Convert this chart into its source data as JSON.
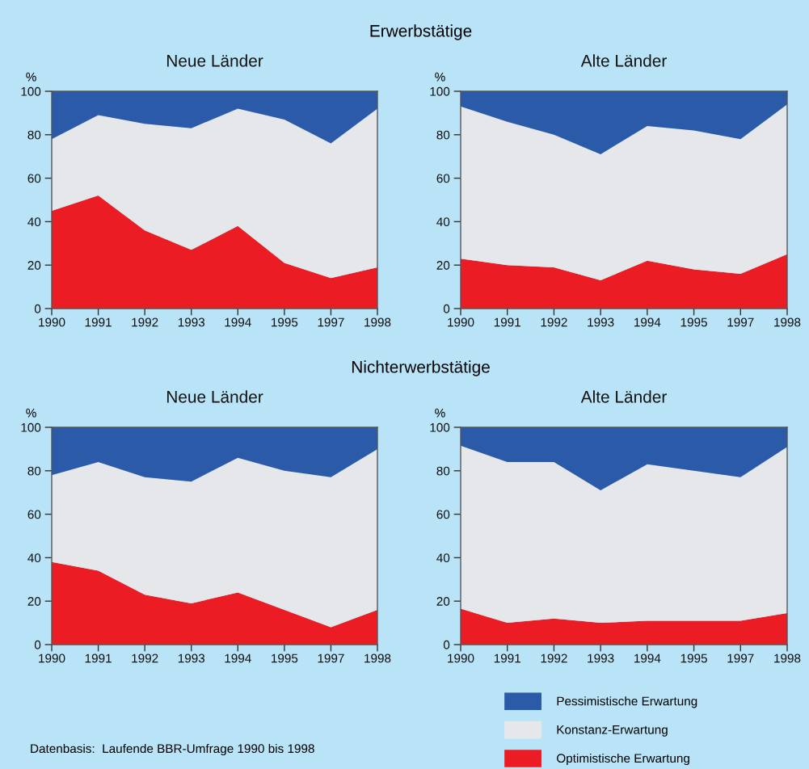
{
  "chart_data": [
    {
      "type": "area",
      "stacked": true,
      "title": "Neue Länder",
      "ylabel": "%",
      "annotations": [
        "Erwerbstätige"
      ],
      "categories": [
        "1990",
        "1991",
        "1992",
        "1993",
        "1994",
        "1995",
        "1997",
        "1998"
      ],
      "ylim": [
        0,
        100
      ],
      "yticks": [
        0,
        20,
        40,
        60,
        80,
        100
      ],
      "grid": false,
      "legend": false,
      "series": [
        {
          "color": "#ec1c24",
          "values": [
            45,
            52,
            36,
            27,
            38,
            21,
            14,
            19
          ]
        },
        {
          "color": "#e5e7ea",
          "values": [
            33,
            37,
            49,
            56,
            54,
            66,
            62,
            73
          ]
        },
        {
          "color": "#2a5aa8",
          "values": [
            22,
            11,
            15,
            17,
            8,
            13,
            24,
            8
          ]
        }
      ]
    },
    {
      "type": "area",
      "stacked": true,
      "title": "Alte Länder",
      "ylabel": "%",
      "categories": [
        "1990",
        "1991",
        "1992",
        "1993",
        "1994",
        "1995",
        "1997",
        "1998"
      ],
      "ylim": [
        0,
        100
      ],
      "yticks": [
        0,
        20,
        40,
        60,
        80,
        100
      ],
      "grid": false,
      "legend": false,
      "series": [
        {
          "color": "#ec1c24",
          "values": [
            23,
            20,
            19,
            13,
            22,
            18,
            16,
            25
          ]
        },
        {
          "color": "#e5e7ea",
          "values": [
            70,
            66,
            61,
            58,
            62,
            64,
            62,
            69
          ]
        },
        {
          "color": "#2a5aa8",
          "values": [
            7,
            14,
            20,
            29,
            16,
            18,
            22,
            6
          ]
        }
      ]
    },
    {
      "type": "area",
      "stacked": true,
      "title": "Neue Länder",
      "ylabel": "%",
      "annotations": [
        "Nichterwerbstätige",
        "Datenbasis:  Laufende BBR-Umfrage 1990 bis 1998"
      ],
      "categories": [
        "1990",
        "1991",
        "1992",
        "1993",
        "1994",
        "1995",
        "1997",
        "1998"
      ],
      "ylim": [
        0,
        100
      ],
      "yticks": [
        0,
        20,
        40,
        60,
        80,
        100
      ],
      "grid": false,
      "legend": false,
      "series": [
        {
          "color": "#ec1c24",
          "values": [
            38,
            34,
            23,
            19,
            24,
            16,
            8,
            16
          ]
        },
        {
          "color": "#e5e7ea",
          "values": [
            40,
            50,
            54,
            56,
            62,
            64,
            69,
            74
          ]
        },
        {
          "color": "#2a5aa8",
          "values": [
            22,
            16,
            23,
            25,
            14,
            20,
            23,
            10
          ]
        }
      ]
    },
    {
      "type": "area",
      "stacked": true,
      "title": "Alte Länder",
      "ylabel": "%",
      "categories": [
        "1990",
        "1991",
        "1992",
        "1993",
        "1994",
        "1995",
        "1997",
        "1998"
      ],
      "ylim": [
        0,
        100
      ],
      "yticks": [
        0,
        20,
        40,
        60,
        80,
        100
      ],
      "grid": false,
      "legend": "bottom",
      "series": [
        {
          "name": "Optimistische Erwartung",
          "color": "#ec1c24",
          "values": [
            16.5,
            10,
            12,
            10,
            11,
            11,
            11,
            14.5
          ]
        },
        {
          "name": "Konstanz-Erwartung",
          "color": "#e5e7ea",
          "values": [
            75,
            74,
            72,
            61,
            72,
            69,
            66,
            76.5
          ]
        },
        {
          "name": "Pessimistische Erwartung",
          "color": "#2a5aa8",
          "values": [
            8.5,
            16,
            16,
            29,
            17,
            20,
            23,
            9
          ]
        }
      ]
    }
  ]
}
